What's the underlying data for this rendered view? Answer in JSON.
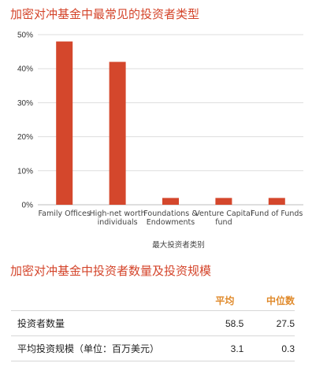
{
  "chart_data": {
    "type": "bar",
    "title": "加密对冲基金中最常见的投资者类型",
    "xlabel": "最大投资者类别",
    "ylabel": "",
    "categories": [
      "Family Offices",
      "High-net worth individuals",
      "Foundations & Endowments",
      "Venture Capital fund",
      "Fund of Funds"
    ],
    "category_labels": [
      [
        "Family Offices"
      ],
      [
        "High-net worth",
        "individuals"
      ],
      [
        "Foundations &",
        "Endowments"
      ],
      [
        "Venture Capital",
        "fund"
      ],
      [
        "Fund of Funds"
      ]
    ],
    "values": [
      48,
      42,
      2,
      2,
      2
    ],
    "ylim": [
      0,
      50
    ],
    "yticks": [
      "0%",
      "10%",
      "20%",
      "30%",
      "40%",
      "50%"
    ],
    "grid": true,
    "bar_color": "#d4472c"
  },
  "table": {
    "title": "加密对冲基金中投资者数量及投资规模",
    "headers": [
      "",
      "平均",
      "中位数"
    ],
    "rows": [
      {
        "label": "投资者数量",
        "mean": "58.5",
        "median": "27.5"
      },
      {
        "label": "平均投资规模（单位：百万美元）",
        "mean": "3.1",
        "median": "0.3"
      }
    ]
  },
  "colors": {
    "title": "#d4452b",
    "header": "#e08a2b",
    "grid": "#dddddd"
  }
}
